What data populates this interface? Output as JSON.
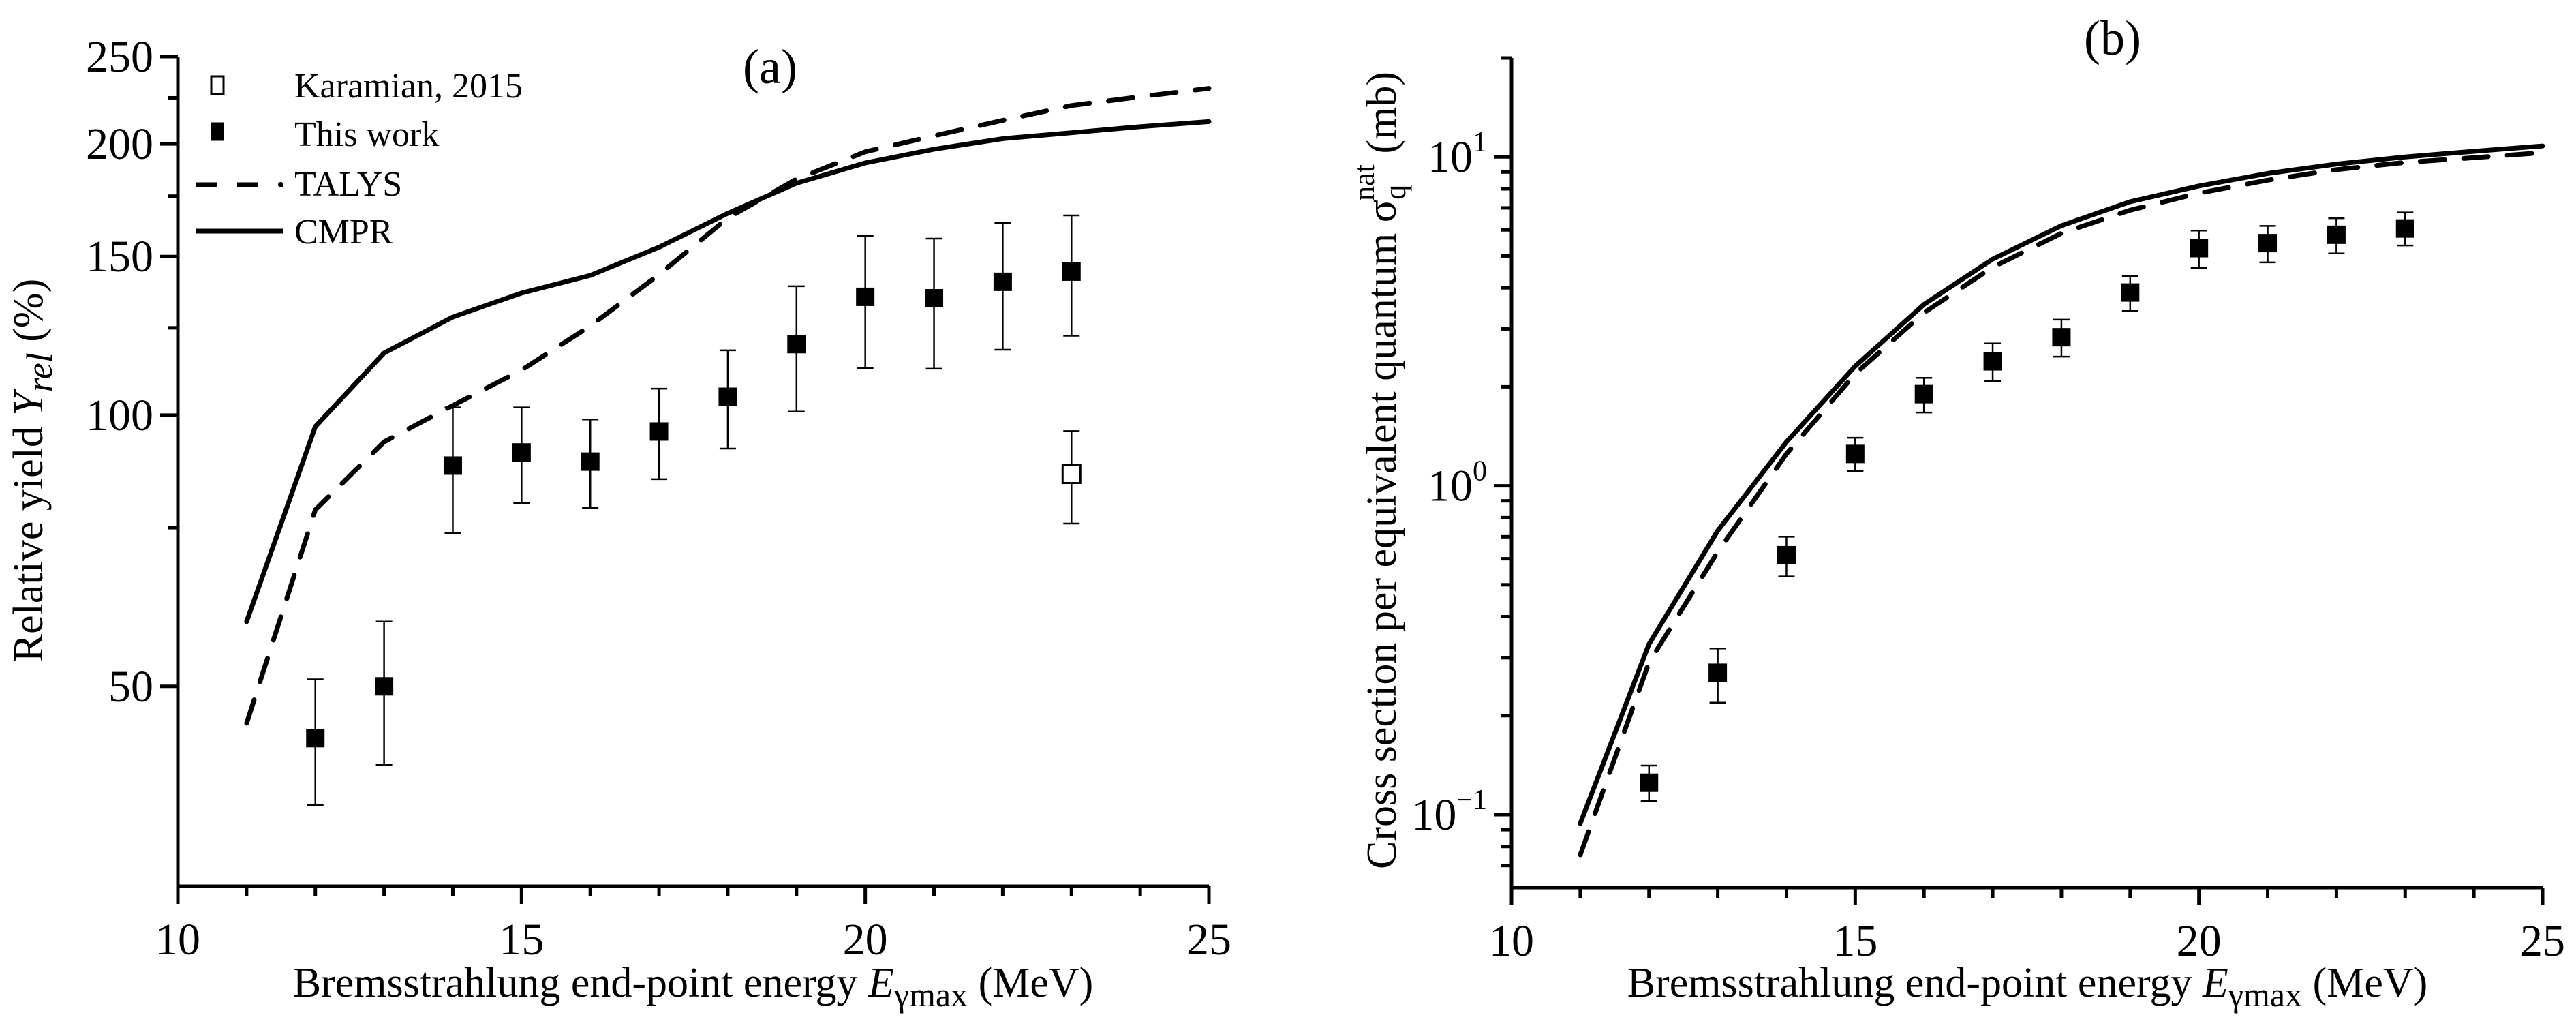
{
  "figure": {
    "panels": [
      "a",
      "b"
    ]
  },
  "chart_data": [
    {
      "id": "a",
      "type": "scatter",
      "panel_label": "(a)",
      "title": "",
      "xlabel": "Bremsstrahlung end-point energy E_γmax (MeV)",
      "xlabel_parts": {
        "pre": "Bremsstrahlung end-point energy ",
        "var": "E",
        "sub": "γmax",
        "post": " (MeV)"
      },
      "ylabel": "Relative yield Y_rel (%)",
      "ylabel_parts": {
        "pre": "Relative yield ",
        "var": "Y",
        "sub": "rel",
        "post": " (%)"
      },
      "xlim": [
        10,
        25
      ],
      "ylim": [
        30,
        250
      ],
      "yscale": "log",
      "x_ticks": [
        10,
        15,
        20,
        25
      ],
      "x_tick_labels": [
        "10",
        "15",
        "20",
        "25"
      ],
      "x_minor_ticks": [
        11,
        12,
        13,
        14,
        16,
        17,
        18,
        19,
        21,
        22,
        23,
        24
      ],
      "y_ticks": [
        50,
        100,
        150,
        200,
        250
      ],
      "y_tick_labels": [
        "50",
        "100",
        "150",
        "200",
        "250"
      ],
      "y_minor_ticks": [
        75,
        125,
        175,
        225
      ],
      "grid": false,
      "legend_position": "top-left",
      "legend": [
        {
          "label": "Karamian, 2015",
          "marker": "open-square"
        },
        {
          "label": "This work",
          "marker": "filled-square"
        },
        {
          "label": "TALYS",
          "line": "dashed"
        },
        {
          "label": "CMPR",
          "line": "solid"
        }
      ],
      "series": [
        {
          "name": "Karamian, 2015",
          "kind": "points",
          "marker": "open-square",
          "x": [
            23
          ],
          "y": [
            86.0
          ],
          "y_err_low": [
            75.8
          ],
          "y_err_high": [
            96.0
          ]
        },
        {
          "name": "This work",
          "kind": "points",
          "marker": "filled-square",
          "x": [
            12,
            13,
            14,
            15,
            16,
            17,
            18,
            19,
            20,
            21,
            22,
            23
          ],
          "y": [
            43.8,
            50.0,
            87.9,
            90.9,
            88.8,
            95.9,
            104.8,
            119.9,
            135.3,
            134.8,
            140.6,
            144.3
          ],
          "y_err_low": [
            36.9,
            40.9,
            74.0,
            79.9,
            78.9,
            84.9,
            91.8,
            100.9,
            112.8,
            112.6,
            118.2,
            122.5
          ],
          "y_err_high": [
            50.9,
            59.0,
            102.0,
            102.0,
            98.9,
            107.0,
            118.0,
            139.0,
            158.1,
            157.0,
            163.5,
            166.6
          ]
        },
        {
          "name": "TALYS",
          "kind": "line",
          "style": "dashed",
          "x": [
            11,
            12,
            13,
            14,
            15,
            16,
            17,
            18,
            19,
            20,
            21,
            22,
            23,
            24,
            25
          ],
          "y": [
            45.5,
            78.5,
            93.4,
            102.5,
            112.2,
            125.6,
            143.2,
            165.5,
            182.8,
            196.0,
            204.2,
            212.4,
            220.6,
            225.6,
            230.5
          ]
        },
        {
          "name": "CMPR",
          "kind": "line",
          "style": "solid",
          "x": [
            11,
            12,
            13,
            14,
            15,
            16,
            17,
            18,
            19,
            20,
            21,
            22,
            23,
            24,
            25
          ],
          "y": [
            59.0,
            97.1,
            117.2,
            128.5,
            136.6,
            142.9,
            153.6,
            167.5,
            180.9,
            190.5,
            197.3,
            202.7,
            205.8,
            209.0,
            211.7
          ]
        }
      ]
    },
    {
      "id": "b",
      "type": "scatter",
      "panel_label": "(b)",
      "title": "",
      "xlabel": "Bremsstrahlung end-point energy E_γmax (MeV)",
      "xlabel_parts": {
        "pre": "Bremsstrahlung end-point energy ",
        "var": "E",
        "sub": "γmax",
        "post": " (MeV)"
      },
      "ylabel": "Cross section per equivalent quantum σ_q^nat (mb)",
      "ylabel_parts": {
        "pre": "Cross section per equivalent quantum ",
        "var": "σ",
        "sub": "q",
        "sup": "nat",
        "post": " (mb)"
      },
      "xlim": [
        10,
        25
      ],
      "ylim": [
        0.06,
        20
      ],
      "yscale": "log",
      "x_ticks": [
        10,
        15,
        20,
        25
      ],
      "x_tick_labels": [
        "10",
        "15",
        "20",
        "25"
      ],
      "x_minor_ticks": [
        11,
        12,
        13,
        14,
        16,
        17,
        18,
        19,
        21,
        22,
        23,
        24
      ],
      "y_ticks": [
        0.1,
        1,
        10
      ],
      "y_tick_labels": [
        {
          "base": "10",
          "exp": "−1"
        },
        {
          "base": "10",
          "exp": "0"
        },
        {
          "base": "10",
          "exp": "1"
        }
      ],
      "y_minor_ticks": [
        0.07,
        0.08,
        0.09,
        0.2,
        0.3,
        0.4,
        0.5,
        0.6,
        0.7,
        0.8,
        0.9,
        2,
        3,
        4,
        5,
        6,
        7,
        8,
        9,
        20
      ],
      "grid": false,
      "legend_position": "none",
      "series": [
        {
          "name": "This work",
          "kind": "points",
          "marker": "filled-square",
          "x": [
            12,
            13,
            14,
            15,
            16,
            17,
            18,
            19,
            20,
            21,
            22,
            23
          ],
          "y": [
            0.125,
            0.27,
            0.615,
            1.25,
            1.9,
            2.39,
            2.83,
            3.87,
            5.28,
            5.47,
            5.8,
            6.06
          ],
          "y_err_low": [
            0.11,
            0.219,
            0.53,
            1.11,
            1.67,
            2.08,
            2.47,
            3.4,
            4.6,
            4.78,
            5.09,
            5.38
          ],
          "y_err_high": [
            0.141,
            0.32,
            0.7,
            1.4,
            2.13,
            2.71,
            3.2,
            4.34,
            5.97,
            6.17,
            6.51,
            6.78
          ]
        },
        {
          "name": "TALYS",
          "kind": "line",
          "style": "dashed",
          "x": [
            11,
            12,
            13,
            14,
            15,
            16,
            17,
            18,
            19,
            20,
            21,
            22,
            23,
            24,
            25
          ],
          "y": [
            0.0755,
            0.29,
            0.63,
            1.25,
            2.19,
            3.36,
            4.62,
            5.86,
            6.89,
            7.76,
            8.5,
            9.15,
            9.62,
            9.95,
            10.3
          ]
        },
        {
          "name": "CMPR",
          "kind": "line",
          "style": "solid",
          "x": [
            11,
            12,
            13,
            14,
            15,
            16,
            17,
            18,
            19,
            20,
            21,
            22,
            23,
            24,
            25
          ],
          "y": [
            0.094,
            0.33,
            0.73,
            1.36,
            2.31,
            3.56,
            4.89,
            6.18,
            7.31,
            8.16,
            8.91,
            9.51,
            10.0,
            10.4,
            10.8
          ]
        }
      ]
    }
  ]
}
